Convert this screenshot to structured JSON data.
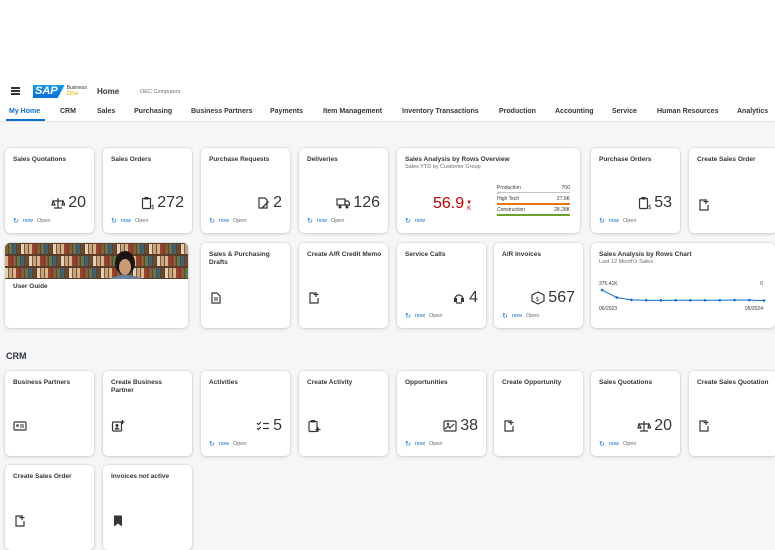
{
  "header": {
    "logo_text": "SAP",
    "logo_business": "Business",
    "logo_one": "One",
    "home_label": "Home",
    "company": "OEC Computers"
  },
  "nav": [
    {
      "label": "My Home"
    },
    {
      "label": "CRM"
    },
    {
      "label": "Sales"
    },
    {
      "label": "Purchasing"
    },
    {
      "label": "Business Partners"
    },
    {
      "label": "Payments"
    },
    {
      "label": "Item Management"
    },
    {
      "label": "Inventory Transactions"
    },
    {
      "label": "Production"
    },
    {
      "label": "Accounting"
    },
    {
      "label": "Service"
    },
    {
      "label": "Human Resources"
    },
    {
      "label": "Analytics"
    }
  ],
  "refresh": {
    "now": "now",
    "open": "Open"
  },
  "home": {
    "sales_quotations": {
      "title": "Sales Quotations",
      "value": "20"
    },
    "sales_orders": {
      "title": "Sales Orders",
      "value": "272"
    },
    "purchase_requests": {
      "title": "Purchase Requests",
      "value": "2"
    },
    "deliveries": {
      "title": "Deliveries",
      "value": "126"
    },
    "sales_analysis_overview": {
      "title": "Sales Analysis by Rows Overview",
      "subtitle": "Sales YTD by Customer Group",
      "value": "56.9",
      "unit": "K",
      "bars": [
        {
          "label": "Production",
          "value": "700",
          "fraction": 0.03,
          "color": "#bfc6d0"
        },
        {
          "label": "High Tech",
          "value": "27.9K",
          "fraction": 1.0,
          "color": "#e9730c"
        },
        {
          "label": "Construction",
          "value": "28.28K",
          "fraction": 1.0,
          "color": "#6ba32a"
        }
      ]
    },
    "purchase_orders": {
      "title": "Purchase Orders",
      "value": "53"
    },
    "create_sales_order": {
      "title": "Create Sales Order"
    },
    "user_guide": {
      "title": "User Guide"
    },
    "sales_purchasing_drafts": {
      "title": "Sales & Purchasing Drafts"
    },
    "create_ar_credit_memo": {
      "title": "Create A/R Credit Memo"
    },
    "service_calls": {
      "title": "Service Calls",
      "value": "4"
    },
    "ar_invoices": {
      "title": "A/R Invoices",
      "value": "567"
    },
    "sales_analysis_chart": {
      "title": "Sales Analysis by Rows Chart",
      "subtitle": "Last 12 Month's Sales",
      "y_top_label": "375.41K",
      "y_zero_label": "0",
      "x_start": "06/2023",
      "x_end": "05/2024"
    }
  },
  "chart_data": {
    "type": "line",
    "title": "Sales Analysis by Rows Chart",
    "subtitle": "Last 12 Month's Sales",
    "x": [
      "06/2023",
      "07/2023",
      "08/2023",
      "09/2023",
      "10/2023",
      "11/2023",
      "12/2023",
      "01/2024",
      "02/2024",
      "03/2024",
      "04/2024",
      "05/2024"
    ],
    "values": [
      375.41,
      140,
      65,
      55,
      52,
      55,
      55,
      55,
      55,
      62,
      60,
      45
    ],
    "ylim": [
      0,
      375.41
    ],
    "grid": false
  },
  "crm": {
    "section_title": "CRM",
    "business_partners": {
      "title": "Business Partners"
    },
    "create_business_partner": {
      "title": "Create Business Partner"
    },
    "activities": {
      "title": "Activities",
      "value": "5"
    },
    "create_activity": {
      "title": "Create Activity"
    },
    "opportunities": {
      "title": "Opportunities",
      "value": "38"
    },
    "create_opportunity": {
      "title": "Create Opportunity"
    },
    "sales_quotations": {
      "title": "Sales Quotations",
      "value": "20"
    },
    "create_sales_quotation": {
      "title": "Create Sales Quotation"
    },
    "create_sales_order": {
      "title": "Create Sales Order"
    },
    "invoices_not_active": {
      "title": "Invoices not active"
    }
  },
  "colors": {
    "accent": "#0a6ed1",
    "negative": "#bb0000",
    "logo_gold": "#f0ab00"
  }
}
